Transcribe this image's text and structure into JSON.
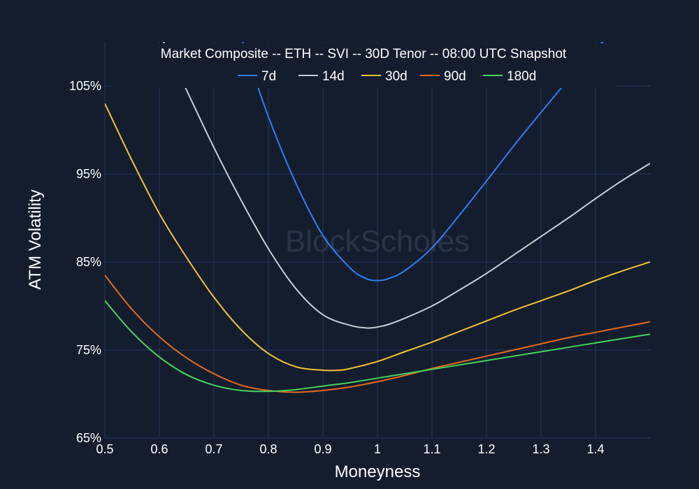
{
  "chart_data": {
    "type": "line",
    "title": "Market Composite -- ETH -- SVI -- 30D Tenor -- 08:00 UTC Snapshot",
    "xlabel": "Moneyness",
    "ylabel": "ATM Volatility",
    "xlim": [
      0.5,
      1.5
    ],
    "ylim": [
      65,
      110
    ],
    "x_ticks": [
      0.5,
      0.6,
      0.7,
      0.8,
      0.9,
      1.0,
      1.1,
      1.2,
      1.3,
      1.4
    ],
    "x_tick_labels": [
      "0.5",
      "0.6",
      "0.7",
      "0.8",
      "0.9",
      "1",
      "1.1",
      "1.2",
      "1.3",
      "1.4"
    ],
    "y_ticks": [
      65,
      75,
      85,
      95,
      105
    ],
    "y_tick_labels": [
      "65%",
      "75%",
      "85%",
      "95%",
      "105%"
    ],
    "grid": true,
    "legend_position": "top-center",
    "watermark": "BlockScholes",
    "background_color": "#131d2e",
    "grid_color": "#26385a",
    "series": [
      {
        "name": "7d",
        "color": "#2f7ef7",
        "x": [
          0.75,
          0.8,
          0.85,
          0.9,
          0.95,
          0.98,
          1.0,
          1.02,
          1.05,
          1.1,
          1.15,
          1.2,
          1.25,
          1.3,
          1.35,
          1.4,
          1.45
        ],
        "values": [
          110.5,
          101.5,
          94.0,
          88.0,
          84.3,
          83.1,
          82.9,
          83.1,
          84.0,
          86.6,
          90.3,
          94.2,
          98.2,
          102.0,
          105.7,
          109.2,
          112.0
        ]
      },
      {
        "name": "14d",
        "color": "#c6ccd6",
        "x": [
          0.6,
          0.65,
          0.7,
          0.75,
          0.8,
          0.85,
          0.9,
          0.95,
          0.98,
          1.0,
          1.02,
          1.05,
          1.1,
          1.15,
          1.2,
          1.25,
          1.3,
          1.35,
          1.4,
          1.45,
          1.5
        ],
        "values": [
          111.0,
          104.5,
          98.0,
          92.0,
          86.5,
          82.0,
          79.0,
          77.8,
          77.5,
          77.6,
          77.9,
          78.6,
          80.0,
          81.8,
          83.7,
          85.8,
          87.9,
          90.0,
          92.2,
          94.3,
          96.2
        ]
      },
      {
        "name": "30d",
        "color": "#f2c230",
        "x": [
          0.5,
          0.55,
          0.6,
          0.65,
          0.7,
          0.75,
          0.8,
          0.85,
          0.9,
          0.93,
          0.95,
          1.0,
          1.05,
          1.1,
          1.15,
          1.2,
          1.25,
          1.3,
          1.35,
          1.4,
          1.45,
          1.5
        ],
        "values": [
          103.0,
          96.5,
          90.5,
          85.5,
          81.0,
          77.3,
          74.6,
          73.1,
          72.7,
          72.7,
          72.9,
          73.7,
          74.8,
          75.9,
          77.1,
          78.3,
          79.5,
          80.6,
          81.7,
          82.9,
          84.0,
          85.0
        ]
      },
      {
        "name": "90d",
        "color": "#e46a1f",
        "x": [
          0.5,
          0.55,
          0.6,
          0.65,
          0.7,
          0.75,
          0.8,
          0.85,
          0.9,
          0.95,
          1.0,
          1.05,
          1.1,
          1.15,
          1.2,
          1.25,
          1.3,
          1.35,
          1.4,
          1.45,
          1.5
        ],
        "values": [
          83.5,
          79.6,
          76.5,
          74.1,
          72.3,
          71.0,
          70.4,
          70.2,
          70.4,
          70.8,
          71.4,
          72.1,
          72.9,
          73.6,
          74.3,
          75.0,
          75.7,
          76.4,
          77.0,
          77.6,
          78.2
        ]
      },
      {
        "name": "180d",
        "color": "#45d35c",
        "x": [
          0.5,
          0.55,
          0.6,
          0.65,
          0.7,
          0.75,
          0.8,
          0.85,
          0.9,
          0.95,
          1.0,
          1.05,
          1.1,
          1.15,
          1.2,
          1.25,
          1.3,
          1.35,
          1.4,
          1.45,
          1.5
        ],
        "values": [
          80.6,
          77.0,
          74.2,
          72.2,
          71.0,
          70.4,
          70.3,
          70.5,
          70.9,
          71.3,
          71.8,
          72.3,
          72.8,
          73.3,
          73.8,
          74.3,
          74.8,
          75.3,
          75.8,
          76.3,
          76.8
        ]
      }
    ]
  }
}
